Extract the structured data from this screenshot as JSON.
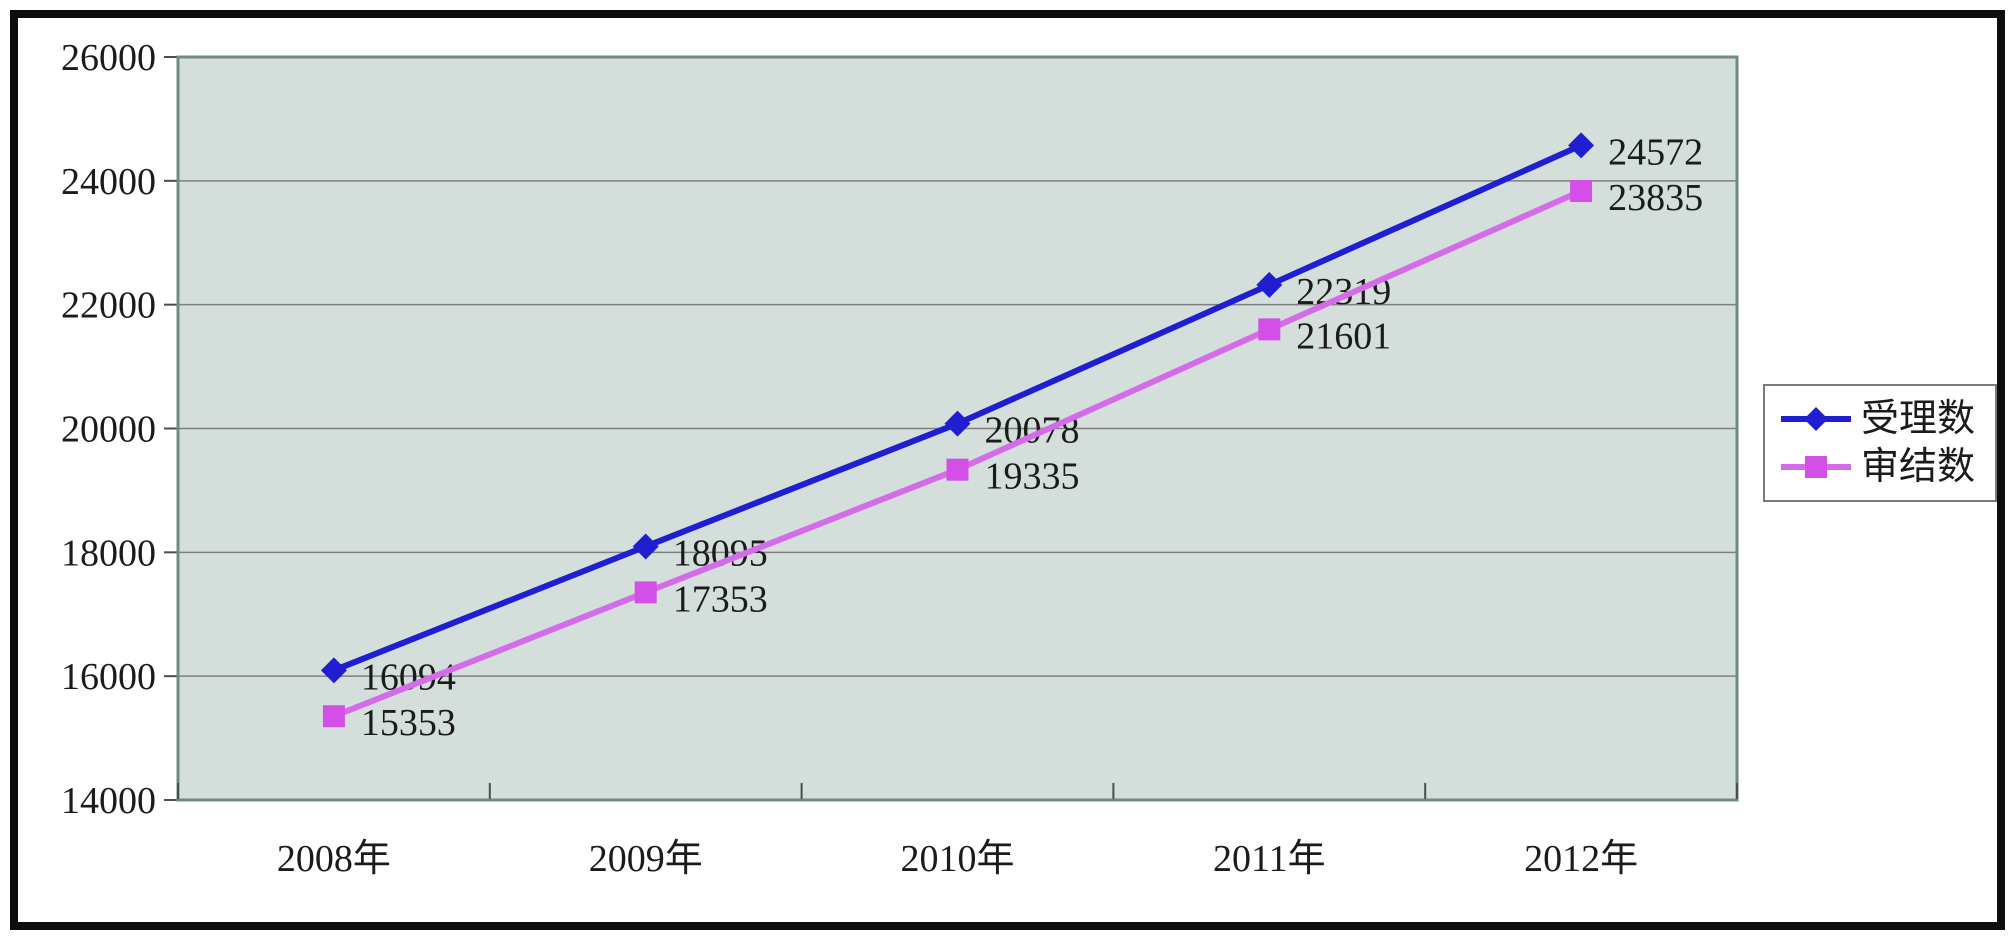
{
  "window": {
    "background": "#ffffff",
    "frame_color": "#0d0d0d"
  },
  "text_color": "#1b1b1b",
  "chart_data": {
    "type": "line",
    "title": "",
    "categories": [
      "2008年",
      "2009年",
      "2010年",
      "2011年",
      "2012年"
    ],
    "series": [
      {
        "name": "受理数",
        "marker": "diamond",
        "color": "#1f1fd1",
        "line_color": "#1f1fd1",
        "values": [
          16094,
          18095,
          20078,
          22319,
          24572
        ]
      },
      {
        "name": "审结数",
        "marker": "square",
        "color": "#d44fe8",
        "line_color": "#d46cea",
        "values": [
          15353,
          17353,
          19335,
          21601,
          23835
        ]
      }
    ],
    "ylim": [
      14000,
      26000
    ],
    "ytick_interval": 2000,
    "ytick_labels": [
      "14000",
      "16000",
      "18000",
      "20000",
      "22000",
      "24000",
      "26000"
    ],
    "grid": "horizontal",
    "gridline_color": "#7f7f7f",
    "tick_color": "#4c4c4c",
    "plot_background": "#d4dfdc",
    "plot_border_color": "#6f8b87",
    "data_labels": true,
    "legend": {
      "position": "right",
      "entries": [
        "受理数",
        "审结数"
      ],
      "background": "#ffffff",
      "border_color": "#7a7a7a"
    }
  }
}
